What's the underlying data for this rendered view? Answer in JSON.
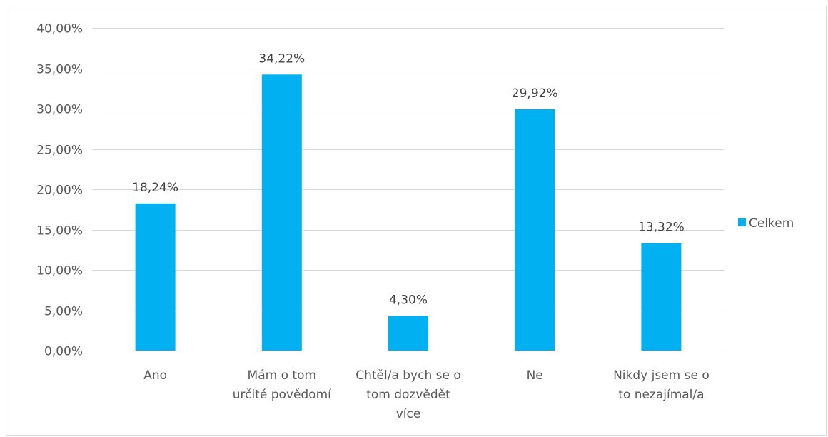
{
  "chart_data": {
    "type": "bar",
    "categories": [
      [
        "Ano"
      ],
      [
        "Mám o tom",
        "určité povědomí"
      ],
      [
        "Chtěl/a bych se o",
        "tom dozvědět",
        "více"
      ],
      [
        "Ne"
      ],
      [
        "Nikdy jsem se o",
        "to nezajímal/a"
      ]
    ],
    "series": [
      {
        "name": "Celkem",
        "values": [
          18.24,
          34.22,
          4.3,
          29.92,
          13.32
        ],
        "labels": [
          "18,24%",
          "34,22%",
          "4,30%",
          "29,92%",
          "13,32%"
        ],
        "color": "#00b0f0"
      }
    ],
    "y_ticks": [
      "0,00%",
      "5,00%",
      "10,00%",
      "15,00%",
      "20,00%",
      "25,00%",
      "30,00%",
      "35,00%",
      "40,00%"
    ],
    "ylim": [
      0,
      40
    ],
    "y_tick_step": 5,
    "grid": true,
    "gridline_color": "#d9d9d9",
    "legend_position": "right"
  }
}
